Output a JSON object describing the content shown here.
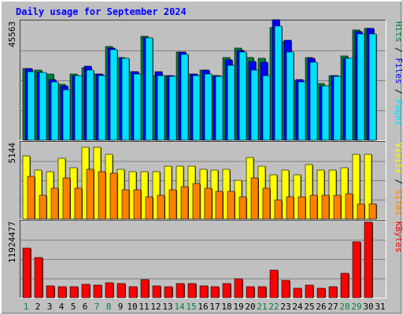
{
  "chart_data": {
    "type": "bar",
    "title": "Daily usage for September 2024",
    "x": [
      "1",
      "2",
      "3",
      "4",
      "5",
      "6",
      "7",
      "8",
      "9",
      "10",
      "11",
      "12",
      "13",
      "14",
      "15",
      "16",
      "17",
      "18",
      "19",
      "20",
      "21",
      "22",
      "23",
      "24",
      "25",
      "26",
      "27",
      "28",
      "29",
      "30",
      "31"
    ],
    "weekend_days": [
      1,
      7,
      8,
      14,
      15,
      21,
      22,
      28,
      29
    ],
    "panels": [
      {
        "name": "traffic",
        "ylabel_parts": [
          "Pages",
          "Files",
          "Hits"
        ],
        "ymax_label": "45563",
        "ymax": 45563,
        "series": [
          {
            "name": "Hits",
            "color": "#008040",
            "values": [
              27500,
              27000,
              25500,
              21500,
              25500,
              28000,
              25500,
              36000,
              32000,
              26500,
              40000,
              25000,
              25000,
              34000,
              25500,
              27000,
              25000,
              32000,
              35500,
              32000,
              31500,
              43500,
              38000,
              23000,
              32000,
              22000,
              25000,
              32500,
              42500,
              43000,
              0
            ]
          },
          {
            "name": "Files",
            "color": "#0000ff",
            "values": [
              27500,
              26000,
              23500,
              21000,
              25000,
              28500,
              25500,
              35500,
              31500,
              26500,
              39500,
              26500,
              25000,
              34000,
              25500,
              27000,
              25000,
              31000,
              34500,
              30500,
              30000,
              46500,
              38500,
              23500,
              31500,
              21000,
              25000,
              31500,
              42000,
              43000,
              0
            ]
          },
          {
            "name": "Pages",
            "color": "#00e0ff",
            "values": [
              26500,
              26000,
              22500,
              19500,
              25000,
              27000,
              25000,
              35000,
              31500,
              25500,
              39500,
              25000,
              24500,
              33000,
              25000,
              25500,
              24500,
              29000,
              34000,
              27000,
              25000,
              44000,
              34000,
              22500,
              30000,
              21000,
              24500,
              31500,
              41000,
              41000,
              0
            ]
          }
        ]
      },
      {
        "name": "visits",
        "ylabel_parts": [
          "Sites",
          "Visits"
        ],
        "ymax_label": "5144",
        "ymax": 5144,
        "series": [
          {
            "name": "Visits",
            "color": "#ffff00",
            "values": [
              4300,
              3300,
              3200,
              4100,
              3500,
              4900,
              4900,
              4400,
              3400,
              3200,
              3200,
              3200,
              3600,
              3600,
              3600,
              3400,
              3300,
              3400,
              2600,
              4200,
              3600,
              3000,
              3300,
              3000,
              3700,
              3300,
              3300,
              3500,
              4400,
              4400,
              0
            ]
          },
          {
            "name": "Sites",
            "color": "#ff8000",
            "values": [
              2900,
              1600,
              2100,
              2800,
              2100,
              3400,
              3200,
              3100,
              2000,
              2000,
              1500,
              1600,
              2000,
              2200,
              2400,
              2100,
              1900,
              1900,
              1500,
              2800,
              2100,
              1300,
              1500,
              1500,
              1600,
              1600,
              1600,
              1700,
              1000,
              1000,
              0
            ]
          }
        ]
      },
      {
        "name": "kbytes",
        "ylabel_parts": [
          "KBytes"
        ],
        "ymax_label": "11924477",
        "ymax": 11924477,
        "series": [
          {
            "name": "KBytes",
            "color": "#ff0000",
            "values": [
              7800000,
              6300000,
              1900000,
              1700000,
              1800000,
              2100000,
              2000000,
              2400000,
              2200000,
              1800000,
              2800000,
              1900000,
              1700000,
              2200000,
              2200000,
              1900000,
              1700000,
              2200000,
              3000000,
              1800000,
              1800000,
              4300000,
              2700000,
              1500000,
              2000000,
              1500000,
              1700000,
              3800000,
              8800000,
              11900000,
              0
            ]
          }
        ]
      }
    ],
    "legend": "vertical-right",
    "grid": true
  }
}
